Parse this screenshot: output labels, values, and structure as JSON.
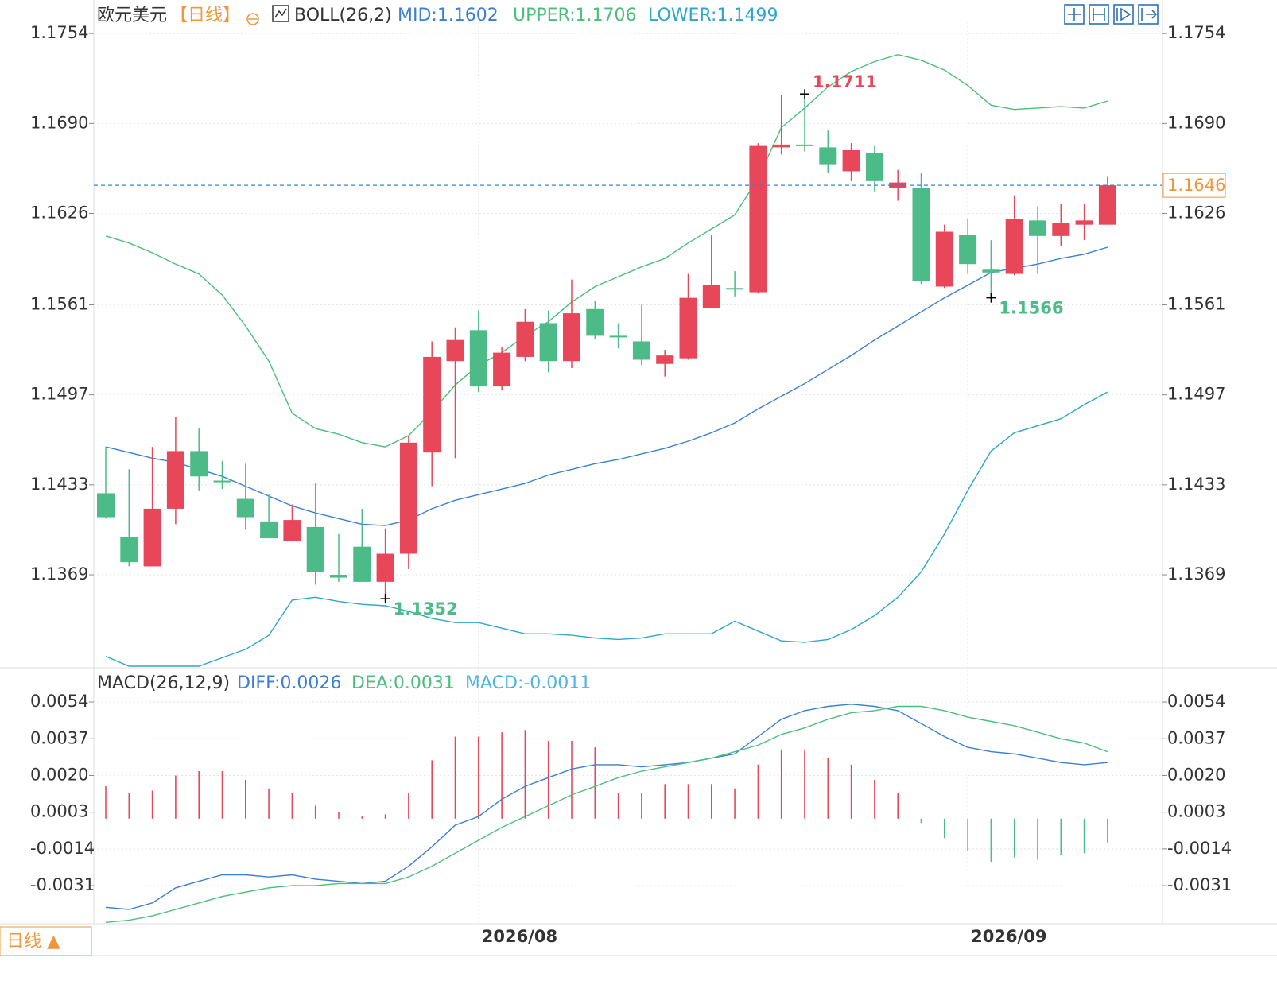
{
  "chart_data": [
    {
      "type": "candlestick",
      "title": "欧元美元",
      "period": "【日线】",
      "indicator": "BOLL(26,2)",
      "categories": [
        null,
        null,
        null,
        null,
        null,
        null,
        null,
        null,
        null,
        null,
        null,
        null,
        null,
        null,
        null,
        null,
        "2026/08",
        null,
        null,
        null,
        null,
        null,
        null,
        null,
        null,
        null,
        null,
        null,
        null,
        null,
        null,
        null,
        null,
        null,
        null,
        null,
        null,
        "2026/09",
        null,
        null,
        null,
        null,
        null,
        null
      ],
      "open": [
        1.1427,
        1.1396,
        1.1375,
        1.1416,
        1.1457,
        1.1436,
        1.1423,
        1.1407,
        1.1393,
        1.1403,
        1.1369,
        1.1389,
        1.1364,
        1.1384,
        1.1456,
        1.1521,
        1.1543,
        1.1503,
        1.1524,
        1.1548,
        1.1521,
        1.1558,
        1.1539,
        1.1535,
        1.1519,
        1.1523,
        1.1559,
        1.1573,
        1.157,
        1.1673,
        1.1675,
        1.1673,
        1.1656,
        1.1669,
        1.1644,
        1.1644,
        1.1574,
        1.1611,
        1.1586,
        1.1583,
        1.1621,
        1.161,
        1.1618,
        1.1618
      ],
      "high": [
        1.146,
        1.1444,
        1.146,
        1.1481,
        1.1473,
        1.145,
        1.1448,
        1.1426,
        1.1419,
        1.1434,
        1.1398,
        1.1416,
        1.1402,
        1.1468,
        1.1535,
        1.1545,
        1.1557,
        1.1531,
        1.1558,
        1.1557,
        1.1579,
        1.1564,
        1.1548,
        1.1561,
        1.1529,
        1.1583,
        1.1611,
        1.1585,
        1.1676,
        1.171,
        1.1711,
        1.1685,
        1.1676,
        1.1674,
        1.1657,
        1.1655,
        1.1618,
        1.1622,
        1.1607,
        1.1639,
        1.1631,
        1.1633,
        1.1633,
        1.1652
      ],
      "low": [
        1.1409,
        1.1375,
        1.1375,
        1.1405,
        1.1429,
        1.143,
        1.1401,
        1.1395,
        1.1393,
        1.1362,
        1.1364,
        1.1364,
        1.1352,
        1.1373,
        1.1432,
        1.1452,
        1.1499,
        1.15,
        1.1521,
        1.1513,
        1.1516,
        1.1537,
        1.153,
        1.1518,
        1.151,
        1.1522,
        1.1559,
        1.1567,
        1.1569,
        1.1668,
        1.167,
        1.1655,
        1.1649,
        1.1641,
        1.1635,
        1.1576,
        1.1573,
        1.1583,
        1.1566,
        1.1582,
        1.1583,
        1.1603,
        1.1607,
        1.1618
      ],
      "close": [
        1.141,
        1.1378,
        1.1416,
        1.1457,
        1.1439,
        1.1435,
        1.141,
        1.1395,
        1.1408,
        1.1371,
        1.1367,
        1.1364,
        1.1384,
        1.1463,
        1.1524,
        1.1536,
        1.1503,
        1.1527,
        1.1549,
        1.1521,
        1.1555,
        1.1539,
        1.1538,
        1.1522,
        1.1525,
        1.1566,
        1.1575,
        1.1572,
        1.1674,
        1.1675,
        1.1674,
        1.1661,
        1.1671,
        1.1649,
        1.1648,
        1.1578,
        1.1613,
        1.159,
        1.1584,
        1.1622,
        1.161,
        1.1619,
        1.1621,
        1.1646
      ],
      "high_labels": [
        null,
        null,
        null,
        null,
        null,
        null,
        null,
        null,
        null,
        null,
        null,
        null,
        null,
        null,
        null,
        null,
        null,
        null,
        null,
        null,
        null,
        null,
        null,
        null,
        null,
        null,
        null,
        null,
        null,
        null,
        "1.1711",
        null,
        null,
        null,
        null,
        null,
        null,
        null,
        null,
        null,
        null,
        null,
        null,
        null
      ],
      "low_labels": [
        null,
        null,
        null,
        null,
        null,
        null,
        null,
        null,
        null,
        null,
        null,
        null,
        "1.1352",
        null,
        null,
        null,
        null,
        null,
        null,
        null,
        null,
        null,
        null,
        null,
        null,
        null,
        null,
        null,
        null,
        null,
        null,
        null,
        null,
        null,
        null,
        null,
        null,
        null,
        "1.1566",
        null,
        null,
        null,
        null,
        null
      ],
      "up_color": "#e8475a",
      "down_color": "#4cbb88",
      "last_color": "#f0953a",
      "last_line_color": "#3a7fd5",
      "overlays": [
        {
          "name": "MID",
          "legend_label": "MID:1.1602",
          "color": "#3a7fd5",
          "values": [
            1.146,
            1.1456,
            1.1452,
            1.1449,
            1.1444,
            1.1439,
            1.1432,
            1.1425,
            1.1418,
            1.1413,
            1.1409,
            1.1405,
            1.1404,
            1.1408,
            1.1416,
            1.1422,
            1.1426,
            1.143,
            1.1434,
            1.144,
            1.1444,
            1.1448,
            1.1451,
            1.1455,
            1.1459,
            1.1464,
            1.147,
            1.1477,
            1.1487,
            1.1496,
            1.1505,
            1.1515,
            1.1525,
            1.1536,
            1.1546,
            1.1556,
            1.1566,
            1.1575,
            1.1584,
            1.1587,
            1.159,
            1.1594,
            1.1597,
            1.1602
          ]
        },
        {
          "name": "UPPER",
          "legend_label": "UPPER:1.1706",
          "color": "#4cbd7c",
          "values": [
            1.161,
            1.1605,
            1.1598,
            1.159,
            1.1583,
            1.1568,
            1.1546,
            1.1521,
            1.1484,
            1.1473,
            1.1469,
            1.1463,
            1.146,
            1.1468,
            1.1485,
            1.1504,
            1.1518,
            1.1527,
            1.1539,
            1.1549,
            1.1563,
            1.1574,
            1.1581,
            1.1588,
            1.1594,
            1.1605,
            1.1615,
            1.1625,
            1.1651,
            1.1687,
            1.1701,
            1.1716,
            1.1727,
            1.1734,
            1.1739,
            1.1735,
            1.1728,
            1.1717,
            1.1703,
            1.17,
            1.1701,
            1.1702,
            1.1701,
            1.1706
          ]
        },
        {
          "name": "LOWER",
          "legend_label": "LOWER:1.1499",
          "color": "#2ea6c8",
          "values": [
            1.1311,
            1.1304,
            1.1304,
            1.1304,
            1.1304,
            1.131,
            1.1316,
            1.1326,
            1.1351,
            1.1353,
            1.135,
            1.1348,
            1.1347,
            1.1343,
            1.1338,
            1.1335,
            1.1335,
            1.1331,
            1.1327,
            1.1327,
            1.1326,
            1.1324,
            1.1323,
            1.1324,
            1.1327,
            1.1327,
            1.1327,
            1.1336,
            1.1329,
            1.1322,
            1.1321,
            1.1323,
            1.133,
            1.134,
            1.1353,
            1.1371,
            1.1398,
            1.1429,
            1.1457,
            1.147,
            1.1475,
            1.148,
            1.149,
            1.1499
          ]
        }
      ],
      "ylim": [
        1.1304,
        1.1762
      ],
      "yticks": [
        1.1754,
        {
          "value": 1.169,
          "label": "1.1690"
        },
        1.1626,
        1.1561,
        1.1497,
        1.1433,
        1.1369
      ],
      "grid": true
    },
    {
      "type": "macd",
      "title": "MACD(26,12,9)",
      "series": [
        {
          "name": "DIFF",
          "legend_label": "DIFF:0.0026",
          "color": "#3a7fd5",
          "values": [
            -0.0041,
            -0.0042,
            -0.0039,
            -0.0032,
            -0.0029,
            -0.0026,
            -0.0026,
            -0.0027,
            -0.0026,
            -0.0028,
            -0.0029,
            -0.003,
            -0.0029,
            -0.0022,
            -0.0013,
            -0.0003,
            0.0001,
            0.0009,
            0.0015,
            0.0019,
            0.0023,
            0.0025,
            0.0025,
            0.0024,
            0.0025,
            0.0026,
            0.0028,
            0.003,
            0.0038,
            0.0046,
            0.005,
            0.0052,
            0.0053,
            0.0052,
            0.005,
            0.0044,
            0.0038,
            0.0033,
            0.0031,
            0.003,
            0.0028,
            0.0026,
            0.0025,
            0.0026
          ]
        },
        {
          "name": "DEA",
          "legend_label": "DEA:0.0031",
          "color": "#4cbd7c",
          "values": [
            -0.0048,
            -0.0047,
            -0.0045,
            -0.0042,
            -0.0039,
            -0.0036,
            -0.0034,
            -0.0032,
            -0.0031,
            -0.0031,
            -0.003,
            -0.003,
            -0.003,
            -0.0027,
            -0.0022,
            -0.0016,
            -0.001,
            -0.0004,
            0.0001,
            0.0006,
            0.0011,
            0.0015,
            0.0019,
            0.0022,
            0.0024,
            0.0026,
            0.0028,
            0.0031,
            0.0034,
            0.0039,
            0.0042,
            0.0046,
            0.0049,
            0.005,
            0.0052,
            0.0052,
            0.005,
            0.0047,
            0.0045,
            0.0043,
            0.004,
            0.0037,
            0.0035,
            0.0031
          ]
        }
      ],
      "histogram": {
        "name": "MACD",
        "legend_label": "MACD:-0.0011",
        "color": "#4fb3e0",
        "up_color": "#e8475a",
        "down_color": "#4cbb88",
        "values": [
          0.0015,
          0.0012,
          0.0013,
          0.002,
          0.0022,
          0.0022,
          0.0018,
          0.0014,
          0.0012,
          0.0006,
          0.0003,
          0.0001,
          0.0002,
          0.0012,
          0.0027,
          0.0038,
          0.0038,
          0.004,
          0.0041,
          0.0036,
          0.0036,
          0.0033,
          0.0012,
          0.0012,
          0.0016,
          0.0016,
          0.0016,
          0.0014,
          0.0025,
          0.0032,
          0.0032,
          0.0028,
          0.0025,
          0.0018,
          0.0012,
          -0.0002,
          -0.0009,
          -0.0015,
          -0.002,
          -0.0018,
          -0.0019,
          -0.0017,
          -0.0016,
          -0.0011
        ]
      },
      "ylim": [
        -0.0049,
        0.0068
      ],
      "yticks": [
        0.0054,
        0.0037,
        {
          "value": 0.002,
          "label": "0.0020"
        },
        0.0003,
        -0.0014,
        -0.0031
      ],
      "grid": true
    }
  ],
  "toolbar": {
    "period_button": "日线 ▲"
  }
}
